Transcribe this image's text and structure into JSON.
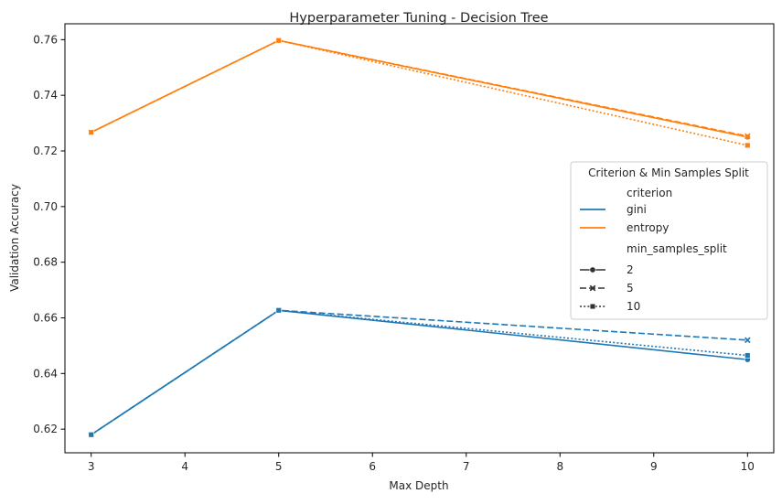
{
  "chart_data": {
    "type": "line",
    "title": "Hyperparameter Tuning - Decision Tree",
    "xlabel": "Max Depth",
    "ylabel": "Validation Accuracy",
    "xlim": [
      2.72,
      10.28
    ],
    "ylim": [
      0.6115,
      0.7657
    ],
    "x_ticks": [
      3,
      4,
      5,
      6,
      7,
      8,
      9,
      10
    ],
    "y_ticks": [
      0.62,
      0.64,
      0.66,
      0.68,
      0.7,
      0.72,
      0.74,
      0.76
    ],
    "y_tick_labels": [
      "0.62",
      "0.64",
      "0.66",
      "0.68",
      "0.70",
      "0.72",
      "0.74",
      "0.76"
    ],
    "x": [
      3,
      5,
      10
    ],
    "grid": false,
    "legend": {
      "title": "Criterion & Min Samples Split",
      "placement": "center-right",
      "hue_title": "criterion",
      "style_title": "min_samples_split",
      "hue_entries": [
        {
          "label": "gini",
          "color": "#1f77b4"
        },
        {
          "label": "entropy",
          "color": "#ff7f0e"
        }
      ],
      "style_entries": [
        {
          "label": "2",
          "dash": "solid",
          "marker": "circle"
        },
        {
          "label": "5",
          "dash": "dashed",
          "marker": "x"
        },
        {
          "label": "10",
          "dash": "dotted",
          "marker": "square"
        }
      ]
    },
    "series": [
      {
        "criterion": "gini",
        "min_samples_split": "2",
        "color": "#1f77b4",
        "dash": "solid",
        "marker": "circle",
        "values": [
          0.618,
          0.6627,
          0.645
        ]
      },
      {
        "criterion": "gini",
        "min_samples_split": "5",
        "color": "#1f77b4",
        "dash": "dashed",
        "marker": "x",
        "values": [
          0.618,
          0.6627,
          0.652
        ]
      },
      {
        "criterion": "gini",
        "min_samples_split": "10",
        "color": "#1f77b4",
        "dash": "dotted",
        "marker": "square",
        "values": [
          0.618,
          0.6627,
          0.6465
        ]
      },
      {
        "criterion": "entropy",
        "min_samples_split": "2",
        "color": "#ff7f0e",
        "dash": "solid",
        "marker": "circle",
        "values": [
          0.7267,
          0.7597,
          0.725
        ]
      },
      {
        "criterion": "entropy",
        "min_samples_split": "5",
        "color": "#ff7f0e",
        "dash": "dashed",
        "marker": "x",
        "values": [
          0.7267,
          0.7597,
          0.7253
        ]
      },
      {
        "criterion": "entropy",
        "min_samples_split": "10",
        "color": "#ff7f0e",
        "dash": "dotted",
        "marker": "square",
        "values": [
          0.7267,
          0.7597,
          0.722
        ]
      }
    ]
  }
}
